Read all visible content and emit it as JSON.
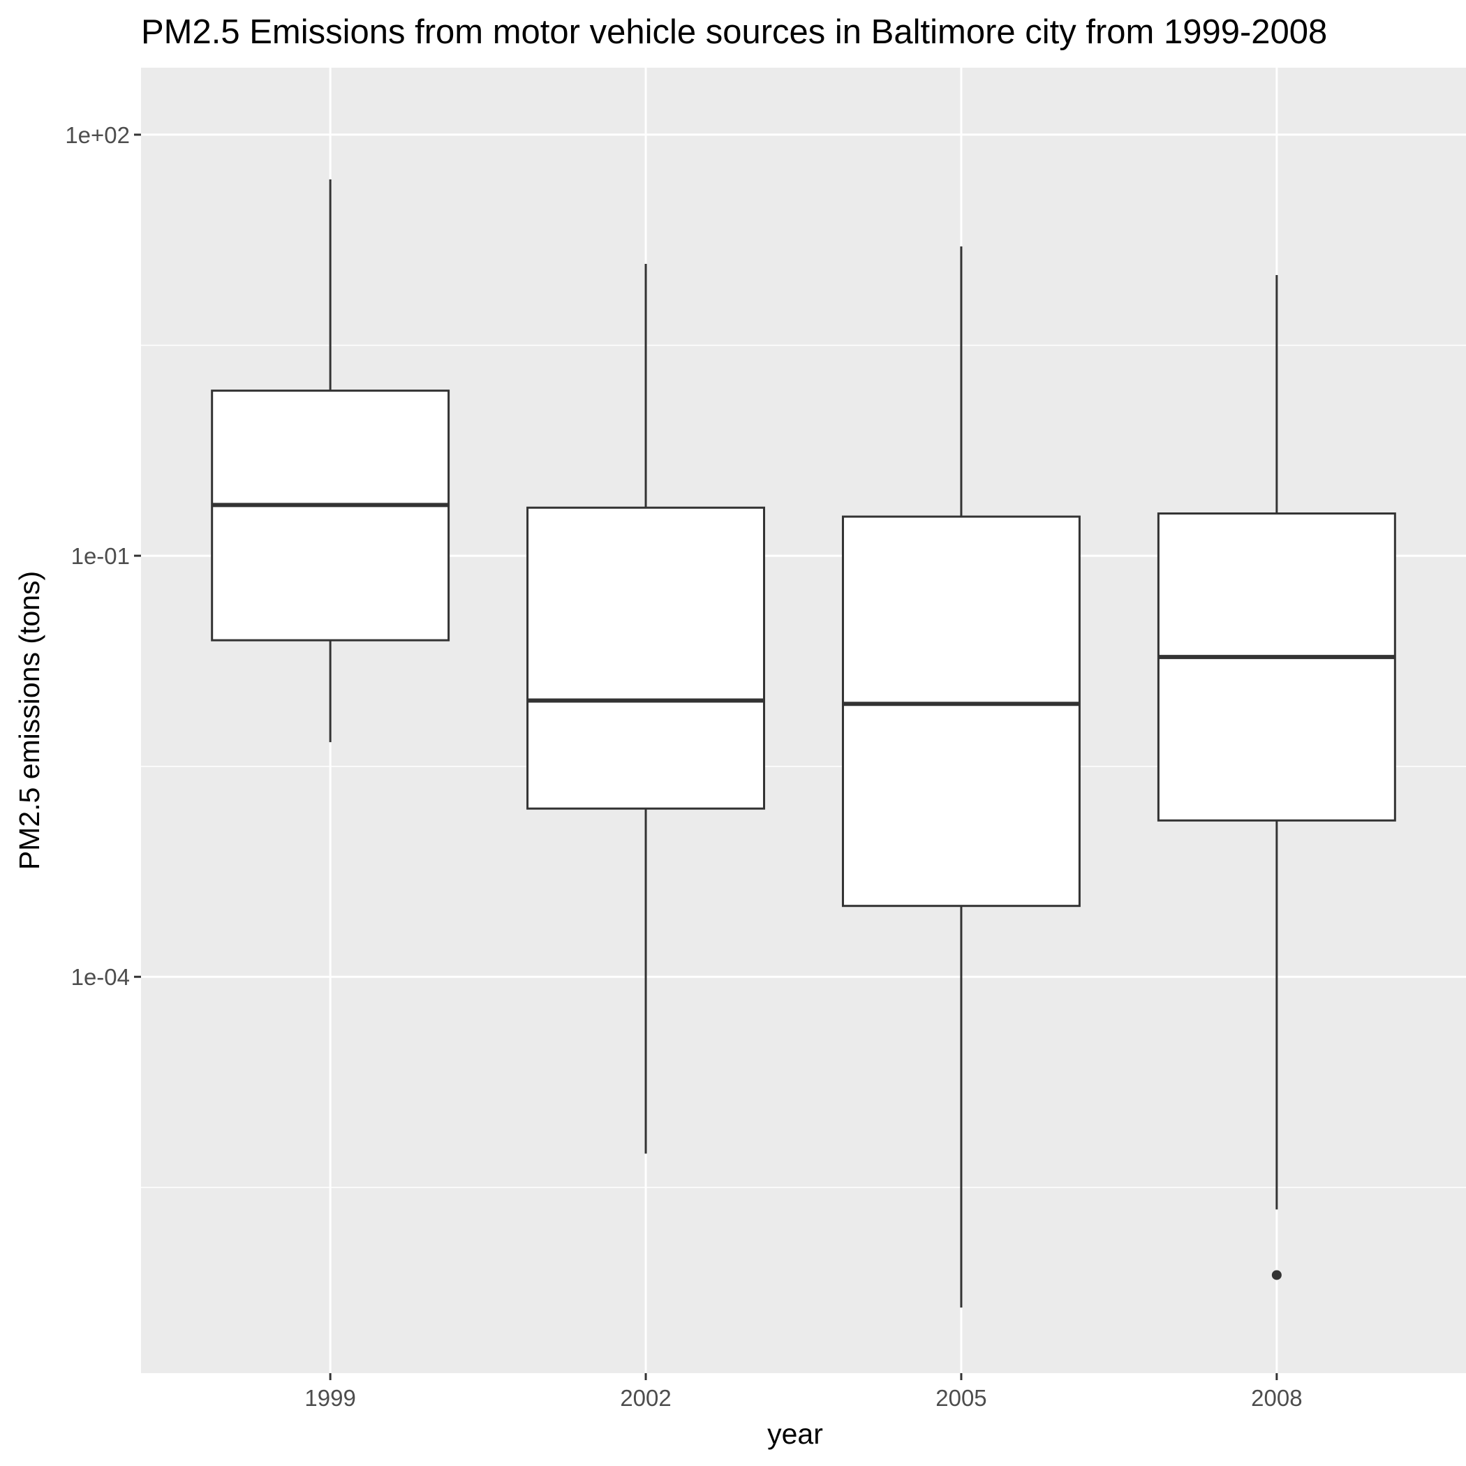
{
  "chart_data": {
    "type": "box",
    "title": "PM2.5 Emissions from motor vehicle sources in Baltimore city from 1999-2008",
    "xlabel": "year",
    "ylabel": "PM2.5 emissions (tons)",
    "y_scale": "log10",
    "ylim": [
      1.5e-07,
      300
    ],
    "y_ticks": [
      {
        "value": 100,
        "label": "1e+02"
      },
      {
        "value": 0.1,
        "label": "1e-01"
      },
      {
        "value": 0.0001,
        "label": "1e-04"
      }
    ],
    "y_minor_grid": [
      3.16,
      0.00316,
      3.16e-06
    ],
    "grid": true,
    "categories": [
      "1999",
      "2002",
      "2005",
      "2008"
    ],
    "boxes": [
      {
        "category": "1999",
        "whisker_low": 0.0047,
        "q1": 0.025,
        "median": 0.23,
        "q3": 1.5,
        "whisker_high": 48,
        "outliers": []
      },
      {
        "category": "2002",
        "whisker_low": 5.5e-06,
        "q1": 0.00158,
        "median": 0.0093,
        "q3": 0.22,
        "whisker_high": 12,
        "outliers": []
      },
      {
        "category": "2005",
        "whisker_low": 4.4e-07,
        "q1": 0.00032,
        "median": 0.0088,
        "q3": 0.19,
        "whisker_high": 16,
        "outliers": []
      },
      {
        "category": "2008",
        "whisker_low": 2.2e-06,
        "q1": 0.0013,
        "median": 0.019,
        "q3": 0.2,
        "whisker_high": 10,
        "outliers": [
          7.5e-07
        ]
      }
    ]
  }
}
